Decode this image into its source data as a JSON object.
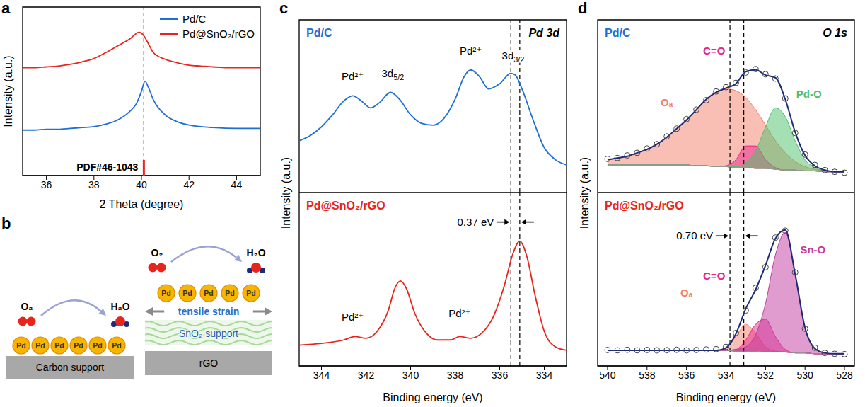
{
  "chart_data": [
    {
      "panel": "a",
      "type": "line",
      "x_label": "2 Theta (degree)",
      "y_label": "Intensity (a.u.)",
      "xlim": [
        35,
        45
      ],
      "xticks": [
        36,
        38,
        40,
        42,
        44
      ],
      "ylim": [
        0,
        10
      ],
      "tick_labels": "x",
      "legend": "top-right",
      "reference": {
        "label": "PDF#46-1043",
        "x": 40.1,
        "color": "#e8251c"
      },
      "series": [
        {
          "name": "Pd/C",
          "color": "#1f6fd6",
          "x": [
            35,
            35.5,
            36,
            36.5,
            37,
            37.5,
            38,
            38.5,
            39,
            39.5,
            39.8,
            40,
            40.15,
            40.3,
            40.5,
            41,
            41.5,
            42,
            42.5,
            43,
            44,
            45
          ],
          "values": [
            2.7,
            2.7,
            2.75,
            2.75,
            2.8,
            2.85,
            2.9,
            3.05,
            3.3,
            3.8,
            4.3,
            5.0,
            5.6,
            5.2,
            4.5,
            3.6,
            3.2,
            3.0,
            2.9,
            2.85,
            2.8,
            2.8
          ]
        },
        {
          "name": "Pd@SnO₂/rGO",
          "color": "#e8251c",
          "x": [
            35,
            35.5,
            36,
            36.5,
            37,
            37.5,
            38,
            38.5,
            39,
            39.5,
            39.9,
            40.1,
            40.3,
            40.5,
            41,
            41.5,
            42,
            42.5,
            43,
            44,
            45
          ],
          "values": [
            6.4,
            6.4,
            6.45,
            6.5,
            6.6,
            6.75,
            6.95,
            7.3,
            7.7,
            8.1,
            8.5,
            8.3,
            7.8,
            7.3,
            6.9,
            6.7,
            6.55,
            6.5,
            6.45,
            6.4,
            6.4
          ]
        }
      ]
    },
    {
      "panel": "c",
      "type": "line",
      "title": "Pd 3d",
      "x_label": "Binding energy (eV)",
      "y_label": "Intensity (a.u.)",
      "xlim": [
        345,
        333
      ],
      "xticks": [
        344,
        342,
        340,
        338,
        336,
        334
      ],
      "tick_labels": "x",
      "shift": {
        "label": "0.37 eV",
        "from": 335.5,
        "to": 335.1,
        "y": 8.3
      },
      "subplots": [
        {
          "name": "Pd/C",
          "color": "#1f6fd6",
          "ylim": [
            0,
            10
          ],
          "x": [
            345,
            344.5,
            344,
            343.5,
            343,
            342.6,
            342.2,
            341.8,
            341.4,
            340.9,
            340.5,
            340,
            339.5,
            339,
            338.5,
            338,
            337.6,
            337.3,
            336.9,
            336.5,
            336,
            335.5,
            335.3,
            335,
            334.5,
            334,
            333.5,
            333
          ],
          "values": [
            3.0,
            3.3,
            3.8,
            4.5,
            5.3,
            5.6,
            5.3,
            4.9,
            5.2,
            5.8,
            5.4,
            4.5,
            4.0,
            3.9,
            4.3,
            5.4,
            6.7,
            7.1,
            6.7,
            6.0,
            6.3,
            6.9,
            6.8,
            6.0,
            4.2,
            2.6,
            1.9,
            1.6
          ],
          "annotations": [
            {
              "text": "Pd²⁺",
              "x": 342.6,
              "y": 6.5
            },
            {
              "text": "3d5/2",
              "x": 340.8,
              "y": 6.7
            },
            {
              "text": "Pd²⁺",
              "x": 337.3,
              "y": 8.0
            },
            {
              "text": "3d3/2",
              "x": 335.4,
              "y": 7.7
            }
          ]
        },
        {
          "name": "Pd@SnO₂/rGO",
          "color": "#e8251c",
          "ylim": [
            0,
            10
          ],
          "x": [
            345,
            344,
            343,
            342.5,
            342,
            341.5,
            341,
            340.7,
            340.45,
            340.2,
            339.8,
            339.3,
            338.8,
            338.2,
            337.8,
            337.3,
            336.8,
            336.3,
            335.8,
            335.4,
            335.1,
            334.8,
            334.4,
            334,
            333.5,
            333
          ],
          "values": [
            1.2,
            1.3,
            1.5,
            1.7,
            1.6,
            2.0,
            3.2,
            4.5,
            4.9,
            4.5,
            3.0,
            1.9,
            1.5,
            1.5,
            1.7,
            1.6,
            1.9,
            2.8,
            4.6,
            6.5,
            7.2,
            6.4,
            4.0,
            2.0,
            1.1,
            0.9
          ],
          "annotations": [
            {
              "text": "Pd²⁺",
              "x": 342.6,
              "y": 2.6
            },
            {
              "text": "Pd²⁺",
              "x": 337.8,
              "y": 2.8
            }
          ]
        }
      ]
    },
    {
      "panel": "d",
      "type": "line",
      "title": "O 1s",
      "x_label": "Binding energy (eV)",
      "y_label": "Intensity (a.u.)",
      "xlim": [
        540.5,
        527.5
      ],
      "xticks": [
        540,
        538,
        536,
        534,
        532,
        530,
        528
      ],
      "tick_labels": "x",
      "shift": {
        "label": "0.70 eV",
        "from": 533.8,
        "to": 533.1,
        "y": 7.5
      },
      "x": [
        540,
        539.5,
        539,
        538.5,
        538,
        537.5,
        537,
        536.5,
        536,
        535.5,
        535,
        534.5,
        534,
        533.5,
        533,
        532.5,
        532,
        531.5,
        531,
        530.5,
        530,
        529.5,
        529,
        528.5,
        528
      ],
      "subplots": [
        {
          "name": "Pd/C",
          "color": "#1f6fd6",
          "ylim": [
            0,
            10
          ],
          "observed": [
            1.95,
            2.0,
            2.15,
            2.3,
            2.55,
            2.8,
            3.25,
            3.7,
            4.25,
            4.8,
            5.35,
            5.85,
            6.1,
            6.35,
            6.95,
            7.15,
            6.85,
            6.6,
            5.45,
            3.45,
            2.2,
            1.6,
            1.3,
            1.2,
            1.15
          ],
          "fit": {
            "color": "#1c2a78",
            "values": [
              1.9,
              2.0,
              2.1,
              2.3,
              2.5,
              2.8,
              3.2,
              3.7,
              4.2,
              4.8,
              5.4,
              5.8,
              6.05,
              6.3,
              7.0,
              7.1,
              6.8,
              6.65,
              5.4,
              3.5,
              2.15,
              1.55,
              1.3,
              1.2,
              1.2
            ]
          },
          "background": [
            1.6,
            1.6,
            1.6,
            1.6,
            1.6,
            1.6,
            1.6,
            1.6,
            1.6,
            1.55,
            1.55,
            1.5,
            1.5,
            1.45,
            1.45,
            1.4,
            1.4,
            1.35,
            1.3,
            1.3,
            1.25,
            1.25,
            1.2,
            1.2,
            1.2
          ],
          "components": [
            {
              "name": "Oₐ",
              "color": "#f4806c",
              "values": [
                1.9,
                2.0,
                2.1,
                2.3,
                2.5,
                2.8,
                3.2,
                3.7,
                4.2,
                4.8,
                5.4,
                5.8,
                6.0,
                5.9,
                5.5,
                4.8,
                3.9,
                3.0,
                2.3,
                1.8,
                1.5,
                1.35,
                1.25,
                1.2,
                1.2
              ],
              "label_at": {
                "x": 537.0,
                "y": 5.0
              }
            },
            {
              "name": "C=O",
              "color": "#e6268c",
              "values": [
                1.6,
                1.6,
                1.6,
                1.6,
                1.6,
                1.6,
                1.6,
                1.6,
                1.6,
                1.55,
                1.55,
                1.5,
                1.55,
                1.9,
                2.7,
                2.7,
                1.9,
                1.45,
                1.3,
                1.3,
                1.25,
                1.25,
                1.2,
                1.2,
                1.2
              ],
              "label_at": {
                "x": 534.6,
                "y": 8.0
              }
            },
            {
              "name": "Pd-O",
              "color": "#4cbf6a",
              "values": [
                1.6,
                1.6,
                1.6,
                1.6,
                1.6,
                1.6,
                1.6,
                1.6,
                1.6,
                1.55,
                1.55,
                1.5,
                1.5,
                1.5,
                1.7,
                2.4,
                3.8,
                4.9,
                4.4,
                3.0,
                1.9,
                1.45,
                1.25,
                1.2,
                1.2
              ],
              "label_at": {
                "x": 529.8,
                "y": 5.5
              }
            }
          ]
        },
        {
          "name": "Pd@SnO₂/rGO",
          "color": "#e8251c",
          "ylim": [
            0,
            10
          ],
          "observed": [
            0.92,
            0.9,
            0.93,
            0.9,
            0.92,
            0.9,
            0.91,
            0.93,
            0.9,
            0.92,
            0.95,
            0.97,
            1.1,
            1.9,
            3.2,
            4.5,
            5.7,
            7.4,
            7.8,
            5.4,
            2.15,
            1.05,
            0.75,
            0.7,
            0.68
          ],
          "fit": {
            "color": "#1c2a78",
            "values": [
              0.9,
              0.9,
              0.9,
              0.9,
              0.9,
              0.9,
              0.9,
              0.9,
              0.9,
              0.9,
              0.9,
              0.9,
              1.05,
              1.85,
              3.3,
              4.4,
              5.8,
              7.35,
              7.85,
              5.3,
              2.2,
              1.0,
              0.75,
              0.7,
              0.7
            ]
          },
          "background": [
            0.9,
            0.9,
            0.9,
            0.9,
            0.9,
            0.9,
            0.9,
            0.9,
            0.9,
            0.9,
            0.9,
            0.9,
            0.9,
            0.85,
            0.85,
            0.85,
            0.8,
            0.8,
            0.8,
            0.75,
            0.75,
            0.7,
            0.7,
            0.7,
            0.7
          ],
          "components": [
            {
              "name": "Oₐ",
              "color": "#f4806c",
              "values": [
                0.9,
                0.9,
                0.9,
                0.9,
                0.9,
                0.9,
                0.9,
                0.9,
                0.9,
                0.9,
                0.9,
                0.9,
                1.05,
                1.7,
                2.4,
                1.9,
                1.1,
                0.85,
                0.8,
                0.75,
                0.75,
                0.7,
                0.7,
                0.7,
                0.7
              ],
              "label_at": {
                "x": 536.0,
                "y": 4.0
              }
            },
            {
              "name": "C=O",
              "color": "#e6268c",
              "values": [
                0.9,
                0.9,
                0.9,
                0.9,
                0.9,
                0.9,
                0.9,
                0.9,
                0.9,
                0.9,
                0.9,
                0.9,
                0.9,
                0.95,
                1.5,
                2.4,
                2.7,
                1.7,
                0.95,
                0.75,
                0.75,
                0.7,
                0.7,
                0.7,
                0.7
              ],
              "label_at": {
                "x": 534.6,
                "y": 5.0
              }
            },
            {
              "name": "Sn-O",
              "color": "#c23a9e",
              "values": [
                0.9,
                0.9,
                0.9,
                0.9,
                0.9,
                0.9,
                0.9,
                0.9,
                0.9,
                0.9,
                0.9,
                0.9,
                0.9,
                0.95,
                1.1,
                1.8,
                3.6,
                6.4,
                7.7,
                5.3,
                2.2,
                1.0,
                0.75,
                0.7,
                0.7
              ],
              "label_at": {
                "x": 529.6,
                "y": 6.5
              }
            }
          ]
        }
      ]
    }
  ],
  "diagram": {
    "panel": "b",
    "scenes": [
      {
        "reactant": "O₂",
        "product": "H₂O",
        "particles": [
          "Pd",
          "Pd",
          "Pd",
          "Pd",
          "Pd",
          "Pd"
        ],
        "support": "Carbon support"
      },
      {
        "reactant": "O₂",
        "product": "H₂O",
        "particles": [
          "Pd",
          "Pd",
          "Pd",
          "Pd",
          "Pd"
        ],
        "strain": "tensile strain",
        "layer": "SnO₂ support",
        "support": "rGO"
      }
    ]
  }
}
